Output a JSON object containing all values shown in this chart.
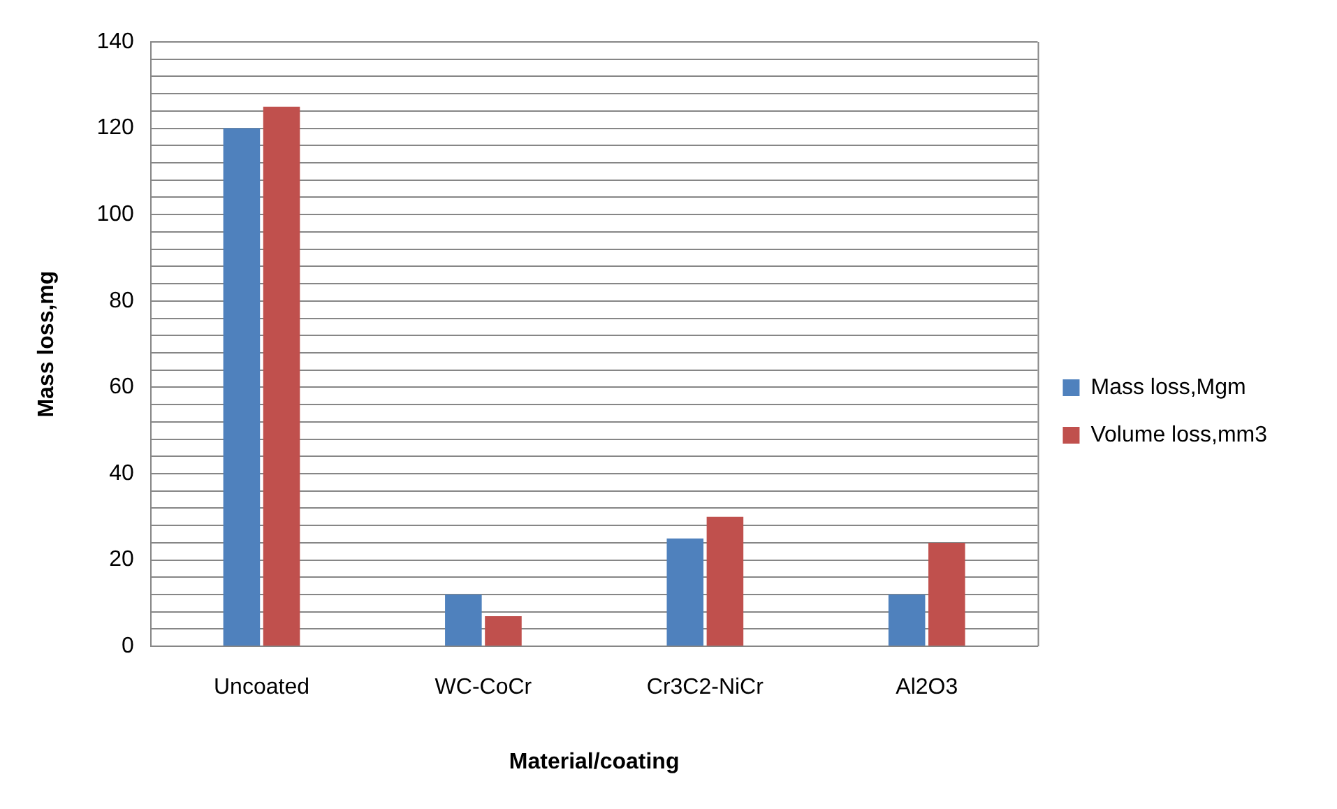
{
  "chart_data": {
    "type": "bar",
    "xlabel": "Material/coating",
    "ylabel": "Mass loss,mg",
    "categories": [
      "Uncoated",
      "WC-CoCr",
      "Cr3C2-NiCr",
      "Al2O3"
    ],
    "series": [
      {
        "name": "Mass loss,Mgm",
        "color": "#4f81bd",
        "values": [
          120,
          12,
          25,
          12
        ]
      },
      {
        "name": "Volume loss,mm3",
        "color": "#c0504d",
        "values": [
          125,
          7,
          30,
          24
        ]
      }
    ],
    "ylim": [
      0,
      140
    ],
    "yticks": [
      0,
      {
        "value": 4,
        "label": null
      },
      {
        "value": 8,
        "label": null
      },
      {
        "value": 12,
        "label": null
      },
      {
        "value": 16,
        "label": null
      },
      20,
      {
        "value": 24,
        "label": null
      },
      {
        "value": 28,
        "label": null
      },
      {
        "value": 32,
        "label": null
      },
      {
        "value": 36,
        "label": null
      },
      40,
      {
        "value": 44,
        "label": null
      },
      {
        "value": 48,
        "label": null
      },
      {
        "value": 52,
        "label": null
      },
      {
        "value": 56,
        "label": null
      },
      60,
      {
        "value": 64,
        "label": null
      },
      {
        "value": 68,
        "label": null
      },
      {
        "value": 72,
        "label": null
      },
      {
        "value": 76,
        "label": null
      },
      80,
      {
        "value": 84,
        "label": null
      },
      {
        "value": 88,
        "label": null
      },
      {
        "value": 92,
        "label": null
      },
      {
        "value": 96,
        "label": null
      },
      100,
      {
        "value": 104,
        "label": null
      },
      {
        "value": 108,
        "label": null
      },
      {
        "value": 112,
        "label": null
      },
      {
        "value": 116,
        "label": null
      },
      120,
      {
        "value": 124,
        "label": null
      },
      {
        "value": 128,
        "label": null
      },
      {
        "value": 132,
        "label": null
      },
      {
        "value": 136,
        "label": null
      },
      140
    ],
    "grid": "y",
    "legend": "right"
  }
}
